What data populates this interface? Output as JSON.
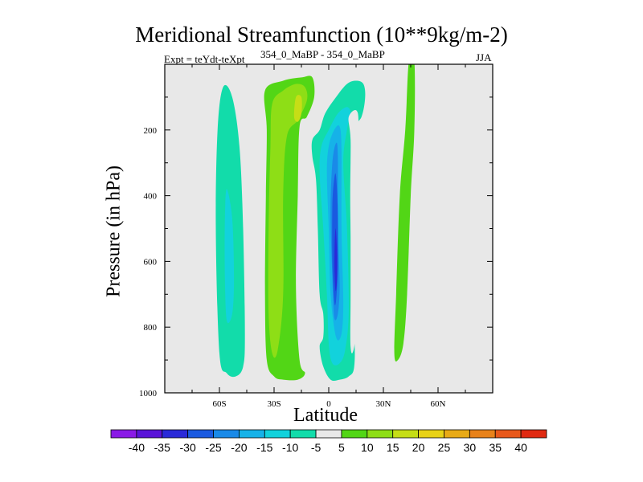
{
  "chart_data": {
    "type": "contour",
    "title": "Meridional Streamfunction (10**9kg/m-2)",
    "subtitle": "354_0_MaBP - 354_0_MaBP",
    "experiment": "Expt = teYdt-teXpt",
    "season": "JJA",
    "xlabel": "Latitude",
    "ylabel": "Pressure (in hPa)",
    "xlim": [
      -90,
      90
    ],
    "ylim": [
      1000,
      0
    ],
    "xticks": [
      {
        "value": -60,
        "label": "60S"
      },
      {
        "value": -30,
        "label": "30S"
      },
      {
        "value": 0,
        "label": "0"
      },
      {
        "value": 30,
        "label": "30N"
      },
      {
        "value": 60,
        "label": "60N"
      }
    ],
    "yticks": [
      {
        "value": 200,
        "label": "200"
      },
      {
        "value": 400,
        "label": "400"
      },
      {
        "value": 600,
        "label": "600"
      },
      {
        "value": 800,
        "label": "800"
      },
      {
        "value": 1000,
        "label": "1000"
      }
    ],
    "colorbar": {
      "labels": [
        "-40",
        "-35",
        "-30",
        "-25",
        "-20",
        "-15",
        "-10",
        "-5",
        "5",
        "10",
        "15",
        "20",
        "25",
        "30",
        "35",
        "40"
      ],
      "colors": [
        "#8a1ae6",
        "#5a14d8",
        "#2a2ad8",
        "#1a5ae0",
        "#1a8ae8",
        "#16b2e8",
        "#12d2dc",
        "#12dcaa",
        "#e8e8e8",
        "#52d616",
        "#8ede16",
        "#c6de16",
        "#e8d216",
        "#e8aa16",
        "#e8821a",
        "#e8581a",
        "#e02a12"
      ]
    },
    "regions": [
      {
        "name": "south-polar-negative",
        "color": "#12dcaa",
        "value": -5,
        "points": [
          [
            -58,
            70
          ],
          [
            -53,
            100
          ],
          [
            -49,
            250
          ],
          [
            -47,
            500
          ],
          [
            -46,
            820
          ],
          [
            -47,
            920
          ],
          [
            -51,
            950
          ],
          [
            -56,
            940
          ],
          [
            -60,
            880
          ],
          [
            -62,
            500
          ],
          [
            -61,
            200
          ]
        ]
      },
      {
        "name": "south-polar-core",
        "color": "#12d2dc",
        "value": -10,
        "points": [
          [
            -56,
            380
          ],
          [
            -53,
            470
          ],
          [
            -52,
            650
          ],
          [
            -53,
            760
          ],
          [
            -56,
            780
          ],
          [
            -57,
            650
          ],
          [
            -57,
            470
          ]
        ]
      },
      {
        "name": "southern-hadley-positive",
        "color": "#52d616",
        "value": 5,
        "points": [
          [
            -35,
            80
          ],
          [
            -25,
            50
          ],
          [
            -15,
            40
          ],
          [
            -9,
            40
          ],
          [
            -8,
            100
          ],
          [
            -12,
            160
          ],
          [
            -16,
            190
          ],
          [
            -17,
            400
          ],
          [
            -18,
            680
          ],
          [
            -16,
            900
          ],
          [
            -13,
            940
          ],
          [
            -17,
            960
          ],
          [
            -25,
            960
          ],
          [
            -30,
            950
          ],
          [
            -34,
            900
          ],
          [
            -35,
            700
          ],
          [
            -34.5,
            400
          ],
          [
            -34,
            200
          ]
        ]
      },
      {
        "name": "southern-hadley-10",
        "color": "#8ede16",
        "value": 10,
        "points": [
          [
            -31,
            120
          ],
          [
            -25,
            80
          ],
          [
            -18,
            60
          ],
          [
            -13,
            70
          ],
          [
            -12,
            110
          ],
          [
            -17,
            170
          ],
          [
            -23,
            220
          ],
          [
            -25,
            400
          ],
          [
            -25,
            700
          ],
          [
            -28,
            870
          ],
          [
            -31,
            880
          ],
          [
            -33,
            760
          ],
          [
            -33,
            500
          ],
          [
            -32,
            250
          ]
        ]
      },
      {
        "name": "southern-hadley-15",
        "color": "#c6de16",
        "value": 15,
        "points": [
          [
            -18,
            100
          ],
          [
            -15,
            100
          ],
          [
            -15,
            150
          ],
          [
            -17,
            175
          ],
          [
            -19,
            160
          ]
        ]
      },
      {
        "name": "tropical-negative",
        "color": "#12dcaa",
        "value": -5,
        "points": [
          [
            4,
            100
          ],
          [
            10,
            60
          ],
          [
            15,
            50
          ],
          [
            19,
            60
          ],
          [
            20,
            100
          ],
          [
            18,
            160
          ],
          [
            13,
            200
          ],
          [
            12,
            300
          ],
          [
            12,
            500
          ],
          [
            14,
            800
          ],
          [
            14,
            920
          ],
          [
            11,
            950
          ],
          [
            6,
            960
          ],
          [
            1,
            960
          ],
          [
            -3,
            920
          ],
          [
            -5,
            860
          ],
          [
            -3,
            830
          ],
          [
            -3,
            760
          ],
          [
            -5,
            700
          ],
          [
            -6,
            500
          ],
          [
            -7,
            350
          ],
          [
            -9,
            280
          ],
          [
            -9,
            230
          ],
          [
            -5,
            200
          ],
          [
            -2,
            150
          ]
        ]
      },
      {
        "name": "tropical-negative-10",
        "color": "#12d2dc",
        "value": -10,
        "points": [
          [
            5,
            150
          ],
          [
            10,
            130
          ],
          [
            12,
            150
          ],
          [
            10,
            200
          ],
          [
            8,
            300
          ],
          [
            10,
            500
          ],
          [
            11,
            750
          ],
          [
            9,
            870
          ],
          [
            6,
            910
          ],
          [
            2,
            910
          ],
          [
            0,
            850
          ],
          [
            -1,
            700
          ],
          [
            -3,
            500
          ],
          [
            -5,
            330
          ],
          [
            -4,
            250
          ],
          [
            0,
            200
          ]
        ]
      },
      {
        "name": "tropical-negative-15",
        "color": "#16b2e8",
        "value": -15,
        "points": [
          [
            3,
            200
          ],
          [
            6,
            190
          ],
          [
            7,
            260
          ],
          [
            7,
            500
          ],
          [
            8,
            720
          ],
          [
            7,
            820
          ],
          [
            4,
            830
          ],
          [
            1,
            700
          ],
          [
            0,
            500
          ],
          [
            -1,
            330
          ],
          [
            0,
            250
          ]
        ]
      },
      {
        "name": "tropical-negative-20",
        "color": "#1a8ae8",
        "value": -20,
        "points": [
          [
            4,
            240
          ],
          [
            5,
            280
          ],
          [
            5,
            500
          ],
          [
            6,
            670
          ],
          [
            5,
            760
          ],
          [
            3,
            770
          ],
          [
            2,
            650
          ],
          [
            1,
            450
          ],
          [
            2,
            300
          ]
        ]
      },
      {
        "name": "tropical-negative-25",
        "color": "#1a5ae0",
        "value": -25,
        "points": [
          [
            4,
            340
          ],
          [
            5,
            450
          ],
          [
            5,
            620
          ],
          [
            4,
            720
          ],
          [
            3,
            720
          ],
          [
            2,
            600
          ],
          [
            2,
            430
          ],
          [
            3,
            350
          ]
        ]
      },
      {
        "name": "tropical-negative-30",
        "color": "#2a2ad8",
        "value": -30,
        "points": [
          [
            3.8,
            500
          ],
          [
            4.6,
            580
          ],
          [
            4.5,
            660
          ],
          [
            3.8,
            690
          ],
          [
            3.2,
            640
          ],
          [
            3.2,
            560
          ]
        ]
      },
      {
        "name": "tropical-gap",
        "color": "#e8e8e8",
        "value": 0,
        "points": [
          [
            11,
            160
          ],
          [
            16,
            150
          ],
          [
            16,
            300
          ],
          [
            17,
            500
          ],
          [
            18,
            700
          ],
          [
            14,
            860
          ],
          [
            12,
            860
          ],
          [
            12,
            700
          ],
          [
            12,
            400
          ],
          [
            12,
            230
          ]
        ]
      },
      {
        "name": "northern-positive",
        "color": "#52d616",
        "value": 5,
        "points": [
          [
            44,
            -10
          ],
          [
            47,
            -10
          ],
          [
            47,
            200
          ],
          [
            45,
            400
          ],
          [
            43,
            700
          ],
          [
            41,
            850
          ],
          [
            38,
            900
          ],
          [
            36,
            880
          ],
          [
            37,
            700
          ],
          [
            39,
            400
          ],
          [
            42,
            200
          ]
        ]
      }
    ]
  }
}
